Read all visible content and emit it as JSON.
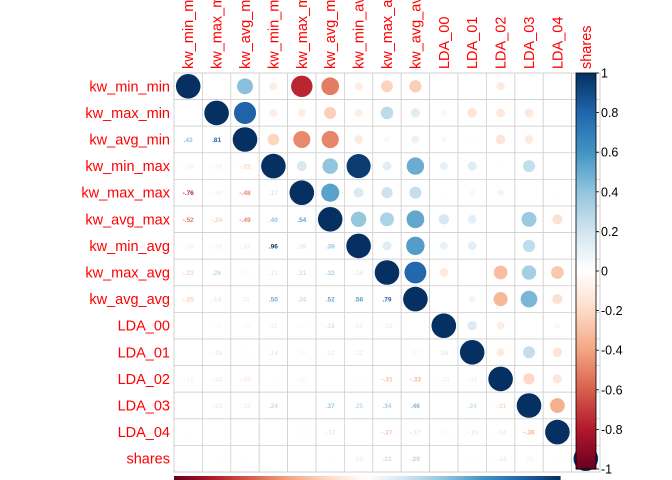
{
  "chart_data": {
    "type": "heatmap",
    "subtype": "corrplot-mixed",
    "variables": [
      "kw_min_min",
      "kw_max_min",
      "kw_avg_min",
      "kw_min_max",
      "kw_max_max",
      "kw_avg_max",
      "kw_min_avg",
      "kw_max_avg",
      "kw_avg_avg",
      "LDA_00",
      "LDA_01",
      "LDA_02",
      "LDA_03",
      "LDA_04",
      "shares"
    ],
    "column_labels": [
      "kw_min_min",
      "kw_max_min",
      "kw_avg_min",
      "kw_min_max",
      "kw_max_max",
      "kw_avg_max",
      "kw_min_avg",
      "kw_max_avg",
      "kw_avg_avg",
      "LDA_00",
      "LDA_01",
      "LDA_02",
      "LDA_03",
      "LDA_04",
      "shares"
    ],
    "upper_glyph": "circle",
    "lower_glyph": "number",
    "matrix": [
      [
        1,
        0.0,
        0.42,
        -0.1,
        -0.76,
        -0.52,
        -0.1,
        -0.23,
        -0.25,
        0.0,
        0.0,
        -0.11,
        0.0,
        0.01,
        0.0
      ],
      [
        0.0,
        1,
        0.81,
        -0.1,
        -0.1,
        -0.24,
        -0.1,
        0.26,
        0.14,
        -0.05,
        -0.15,
        -0.13,
        -0.13,
        0.0,
        0.01
      ],
      [
        0.42,
        0.81,
        1,
        -0.22,
        -0.48,
        -0.49,
        -0.12,
        0.05,
        0.1,
        -0.05,
        -0.02,
        -0.15,
        -0.12,
        0.0,
        0.01
      ],
      [
        -0.1,
        -0.1,
        -0.22,
        1,
        0.17,
        0.4,
        0.96,
        0.13,
        0.5,
        0.11,
        0.14,
        -0.02,
        0.24,
        0.0,
        0.0
      ],
      [
        -0.76,
        -0.1,
        -0.48,
        0.17,
        1,
        0.54,
        0.16,
        0.21,
        0.24,
        0.02,
        0.05,
        -0.07,
        0.0,
        -0.02,
        0.0
      ],
      [
        -0.52,
        -0.24,
        -0.49,
        0.4,
        0.54,
        1,
        0.39,
        0.32,
        0.52,
        0.18,
        0.12,
        0.0,
        0.37,
        -0.17,
        0.01
      ],
      [
        -0.1,
        -0.1,
        -0.12,
        0.96,
        0.16,
        0.39,
        1,
        0.14,
        0.56,
        0.1,
        0.12,
        -0.01,
        0.25,
        0.0,
        0.1
      ],
      [
        -0.23,
        0.26,
        0.05,
        0.13,
        0.21,
        0.32,
        0.14,
        1,
        0.79,
        -0.12,
        0.0,
        -0.31,
        0.34,
        -0.27,
        0.22
      ],
      [
        -0.25,
        0.14,
        0.1,
        0.5,
        0.24,
        0.52,
        0.56,
        0.79,
        1,
        0.0,
        0.07,
        -0.33,
        0.46,
        -0.17,
        0.29
      ],
      [
        0.0,
        -0.05,
        -0.05,
        0.11,
        0.02,
        0.18,
        0.1,
        -0.12,
        0.0,
        1,
        0.15,
        -0.1,
        0.0,
        -0.05,
        0.0
      ],
      [
        0.0,
        -0.15,
        -0.02,
        0.14,
        0.05,
        0.12,
        0.12,
        0.0,
        0.07,
        0.15,
        1,
        -0.11,
        0.24,
        -0.15,
        0.02
      ],
      [
        -0.11,
        -0.13,
        -0.15,
        -0.02,
        -0.07,
        0.0,
        -0.01,
        -0.31,
        -0.33,
        -0.1,
        -0.11,
        1,
        -0.21,
        -0.14,
        -0.14
      ],
      [
        0.0,
        -0.13,
        -0.12,
        0.24,
        0.0,
        0.37,
        0.25,
        0.34,
        0.46,
        0.0,
        0.24,
        -0.21,
        1,
        -0.36,
        0.06
      ],
      [
        0.01,
        0.0,
        0.0,
        0.0,
        -0.02,
        -0.17,
        0.0,
        -0.27,
        -0.17,
        -0.05,
        -0.15,
        -0.14,
        -0.36,
        1,
        -0.02
      ],
      [
        0.0,
        0.01,
        0.01,
        0.0,
        0.0,
        0.01,
        0.1,
        0.22,
        0.29,
        0.0,
        0.02,
        -0.14,
        0.06,
        -0.02,
        1
      ]
    ],
    "color_scale": {
      "min": -1,
      "max": 1,
      "ticks": [
        -1,
        -0.8,
        -0.6,
        -0.4,
        -0.2,
        0,
        0.2,
        0.4,
        0.6,
        0.8,
        1
      ],
      "tick_labels": [
        "-1",
        "-0.8",
        "-0.6",
        "-0.4",
        "-0.2",
        "0",
        "0.2",
        "0.4",
        "0.6",
        "0.8",
        "1"
      ],
      "stops": [
        "#67001F",
        "#B2182B",
        "#D6604D",
        "#F4A582",
        "#FDDBC7",
        "#FFFFFF",
        "#D1E5F0",
        "#92C5DE",
        "#4393C3",
        "#2166AC",
        "#053061"
      ]
    },
    "label_color": "#FF0000",
    "grid_color": "#D0D0D0",
    "legend": "right"
  }
}
